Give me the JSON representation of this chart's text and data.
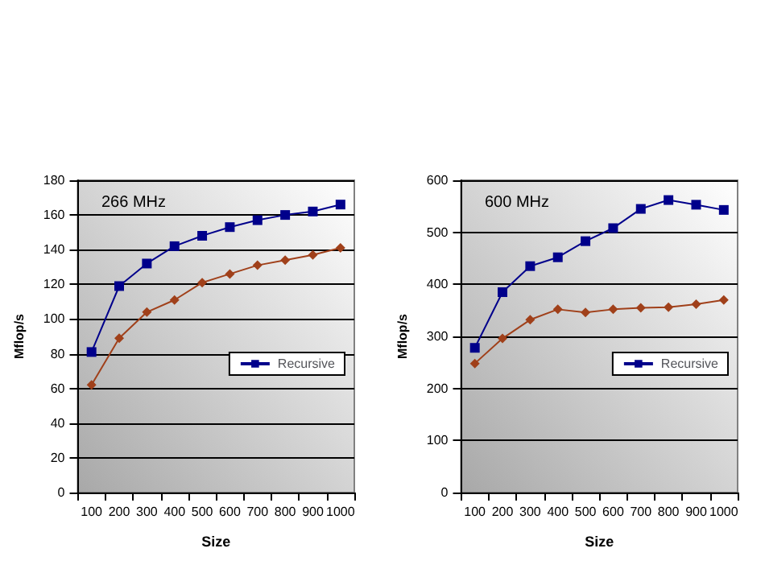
{
  "chart_data": [
    {
      "type": "line",
      "title": "266 MHz",
      "xlabel": "Size",
      "ylabel": "Mflop/s",
      "categories": [
        "100",
        "200",
        "300",
        "400",
        "500",
        "600",
        "700",
        "800",
        "900",
        "1000"
      ],
      "series": [
        {
          "color": "#a0401a",
          "marker": "diamond",
          "values": [
            62,
            89,
            104,
            111,
            121,
            126,
            131,
            134,
            137,
            141
          ]
        },
        {
          "name": "Recursive",
          "color": "#00008b",
          "marker": "square",
          "values": [
            81,
            119,
            132,
            142,
            148,
            153,
            157,
            160,
            162,
            166
          ]
        }
      ],
      "ylim": [
        0,
        180
      ],
      "yticks": [
        0,
        20,
        40,
        60,
        80,
        100,
        120,
        140,
        160,
        180
      ],
      "grid": "y",
      "legend": "right"
    },
    {
      "type": "line",
      "title": "600 MHz",
      "xlabel": "Size",
      "ylabel": "Mflop/s",
      "categories": [
        "100",
        "200",
        "300",
        "400",
        "500",
        "600",
        "700",
        "800",
        "900",
        "1000"
      ],
      "series": [
        {
          "color": "#a0401a",
          "marker": "diamond",
          "values": [
            248,
            296,
            332,
            352,
            346,
            352,
            355,
            356,
            362,
            370
          ]
        },
        {
          "name": "Recursive",
          "color": "#00008b",
          "marker": "square",
          "values": [
            278,
            385,
            435,
            452,
            483,
            508,
            545,
            562,
            553,
            543
          ]
        }
      ],
      "ylim": [
        0,
        600
      ],
      "yticks": [
        0,
        100,
        200,
        300,
        400,
        500,
        600
      ],
      "grid": "y",
      "legend": "right"
    }
  ]
}
